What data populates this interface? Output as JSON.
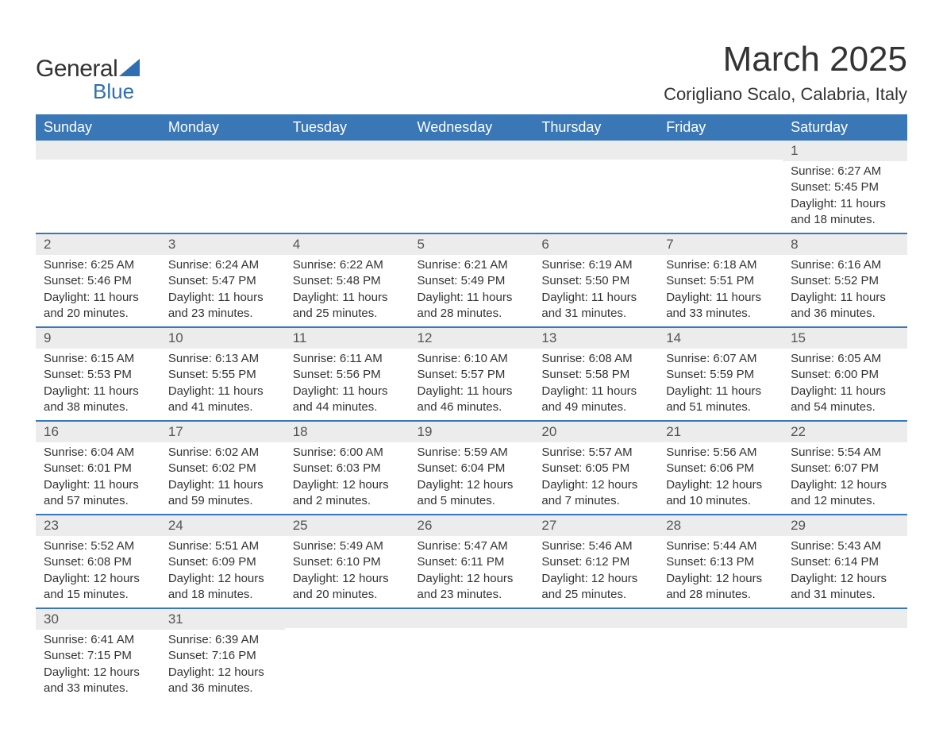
{
  "logo": {
    "general": "General",
    "blue": "Blue"
  },
  "header": {
    "title": "March 2025",
    "location": "Corigliano Scalo, Calabria, Italy"
  },
  "colors": {
    "header_bg": "#3a77b7",
    "header_text": "#ffffff",
    "daynum_bg": "#ececec",
    "row_divider": "#3a77b7",
    "text": "#333333",
    "logo_blue": "#2f6eb0",
    "background": "#ffffff"
  },
  "fonts": {
    "title_size_pt": 33,
    "location_size_pt": 17,
    "weekday_size_pt": 14,
    "daynum_size_pt": 13,
    "body_size_pt": 11
  },
  "weekdays": [
    "Sunday",
    "Monday",
    "Tuesday",
    "Wednesday",
    "Thursday",
    "Friday",
    "Saturday"
  ],
  "weeks": [
    [
      {
        "empty": true
      },
      {
        "empty": true
      },
      {
        "empty": true
      },
      {
        "empty": true
      },
      {
        "empty": true
      },
      {
        "empty": true
      },
      {
        "day": "1",
        "sunrise": "Sunrise: 6:27 AM",
        "sunset": "Sunset: 5:45 PM",
        "daylight1": "Daylight: 11 hours",
        "daylight2": "and 18 minutes."
      }
    ],
    [
      {
        "day": "2",
        "sunrise": "Sunrise: 6:25 AM",
        "sunset": "Sunset: 5:46 PM",
        "daylight1": "Daylight: 11 hours",
        "daylight2": "and 20 minutes."
      },
      {
        "day": "3",
        "sunrise": "Sunrise: 6:24 AM",
        "sunset": "Sunset: 5:47 PM",
        "daylight1": "Daylight: 11 hours",
        "daylight2": "and 23 minutes."
      },
      {
        "day": "4",
        "sunrise": "Sunrise: 6:22 AM",
        "sunset": "Sunset: 5:48 PM",
        "daylight1": "Daylight: 11 hours",
        "daylight2": "and 25 minutes."
      },
      {
        "day": "5",
        "sunrise": "Sunrise: 6:21 AM",
        "sunset": "Sunset: 5:49 PM",
        "daylight1": "Daylight: 11 hours",
        "daylight2": "and 28 minutes."
      },
      {
        "day": "6",
        "sunrise": "Sunrise: 6:19 AM",
        "sunset": "Sunset: 5:50 PM",
        "daylight1": "Daylight: 11 hours",
        "daylight2": "and 31 minutes."
      },
      {
        "day": "7",
        "sunrise": "Sunrise: 6:18 AM",
        "sunset": "Sunset: 5:51 PM",
        "daylight1": "Daylight: 11 hours",
        "daylight2": "and 33 minutes."
      },
      {
        "day": "8",
        "sunrise": "Sunrise: 6:16 AM",
        "sunset": "Sunset: 5:52 PM",
        "daylight1": "Daylight: 11 hours",
        "daylight2": "and 36 minutes."
      }
    ],
    [
      {
        "day": "9",
        "sunrise": "Sunrise: 6:15 AM",
        "sunset": "Sunset: 5:53 PM",
        "daylight1": "Daylight: 11 hours",
        "daylight2": "and 38 minutes."
      },
      {
        "day": "10",
        "sunrise": "Sunrise: 6:13 AM",
        "sunset": "Sunset: 5:55 PM",
        "daylight1": "Daylight: 11 hours",
        "daylight2": "and 41 minutes."
      },
      {
        "day": "11",
        "sunrise": "Sunrise: 6:11 AM",
        "sunset": "Sunset: 5:56 PM",
        "daylight1": "Daylight: 11 hours",
        "daylight2": "and 44 minutes."
      },
      {
        "day": "12",
        "sunrise": "Sunrise: 6:10 AM",
        "sunset": "Sunset: 5:57 PM",
        "daylight1": "Daylight: 11 hours",
        "daylight2": "and 46 minutes."
      },
      {
        "day": "13",
        "sunrise": "Sunrise: 6:08 AM",
        "sunset": "Sunset: 5:58 PM",
        "daylight1": "Daylight: 11 hours",
        "daylight2": "and 49 minutes."
      },
      {
        "day": "14",
        "sunrise": "Sunrise: 6:07 AM",
        "sunset": "Sunset: 5:59 PM",
        "daylight1": "Daylight: 11 hours",
        "daylight2": "and 51 minutes."
      },
      {
        "day": "15",
        "sunrise": "Sunrise: 6:05 AM",
        "sunset": "Sunset: 6:00 PM",
        "daylight1": "Daylight: 11 hours",
        "daylight2": "and 54 minutes."
      }
    ],
    [
      {
        "day": "16",
        "sunrise": "Sunrise: 6:04 AM",
        "sunset": "Sunset: 6:01 PM",
        "daylight1": "Daylight: 11 hours",
        "daylight2": "and 57 minutes."
      },
      {
        "day": "17",
        "sunrise": "Sunrise: 6:02 AM",
        "sunset": "Sunset: 6:02 PM",
        "daylight1": "Daylight: 11 hours",
        "daylight2": "and 59 minutes."
      },
      {
        "day": "18",
        "sunrise": "Sunrise: 6:00 AM",
        "sunset": "Sunset: 6:03 PM",
        "daylight1": "Daylight: 12 hours",
        "daylight2": "and 2 minutes."
      },
      {
        "day": "19",
        "sunrise": "Sunrise: 5:59 AM",
        "sunset": "Sunset: 6:04 PM",
        "daylight1": "Daylight: 12 hours",
        "daylight2": "and 5 minutes."
      },
      {
        "day": "20",
        "sunrise": "Sunrise: 5:57 AM",
        "sunset": "Sunset: 6:05 PM",
        "daylight1": "Daylight: 12 hours",
        "daylight2": "and 7 minutes."
      },
      {
        "day": "21",
        "sunrise": "Sunrise: 5:56 AM",
        "sunset": "Sunset: 6:06 PM",
        "daylight1": "Daylight: 12 hours",
        "daylight2": "and 10 minutes."
      },
      {
        "day": "22",
        "sunrise": "Sunrise: 5:54 AM",
        "sunset": "Sunset: 6:07 PM",
        "daylight1": "Daylight: 12 hours",
        "daylight2": "and 12 minutes."
      }
    ],
    [
      {
        "day": "23",
        "sunrise": "Sunrise: 5:52 AM",
        "sunset": "Sunset: 6:08 PM",
        "daylight1": "Daylight: 12 hours",
        "daylight2": "and 15 minutes."
      },
      {
        "day": "24",
        "sunrise": "Sunrise: 5:51 AM",
        "sunset": "Sunset: 6:09 PM",
        "daylight1": "Daylight: 12 hours",
        "daylight2": "and 18 minutes."
      },
      {
        "day": "25",
        "sunrise": "Sunrise: 5:49 AM",
        "sunset": "Sunset: 6:10 PM",
        "daylight1": "Daylight: 12 hours",
        "daylight2": "and 20 minutes."
      },
      {
        "day": "26",
        "sunrise": "Sunrise: 5:47 AM",
        "sunset": "Sunset: 6:11 PM",
        "daylight1": "Daylight: 12 hours",
        "daylight2": "and 23 minutes."
      },
      {
        "day": "27",
        "sunrise": "Sunrise: 5:46 AM",
        "sunset": "Sunset: 6:12 PM",
        "daylight1": "Daylight: 12 hours",
        "daylight2": "and 25 minutes."
      },
      {
        "day": "28",
        "sunrise": "Sunrise: 5:44 AM",
        "sunset": "Sunset: 6:13 PM",
        "daylight1": "Daylight: 12 hours",
        "daylight2": "and 28 minutes."
      },
      {
        "day": "29",
        "sunrise": "Sunrise: 5:43 AM",
        "sunset": "Sunset: 6:14 PM",
        "daylight1": "Daylight: 12 hours",
        "daylight2": "and 31 minutes."
      }
    ],
    [
      {
        "day": "30",
        "sunrise": "Sunrise: 6:41 AM",
        "sunset": "Sunset: 7:15 PM",
        "daylight1": "Daylight: 12 hours",
        "daylight2": "and 33 minutes."
      },
      {
        "day": "31",
        "sunrise": "Sunrise: 6:39 AM",
        "sunset": "Sunset: 7:16 PM",
        "daylight1": "Daylight: 12 hours",
        "daylight2": "and 36 minutes."
      },
      {
        "empty": true
      },
      {
        "empty": true
      },
      {
        "empty": true
      },
      {
        "empty": true
      },
      {
        "empty": true
      }
    ]
  ]
}
